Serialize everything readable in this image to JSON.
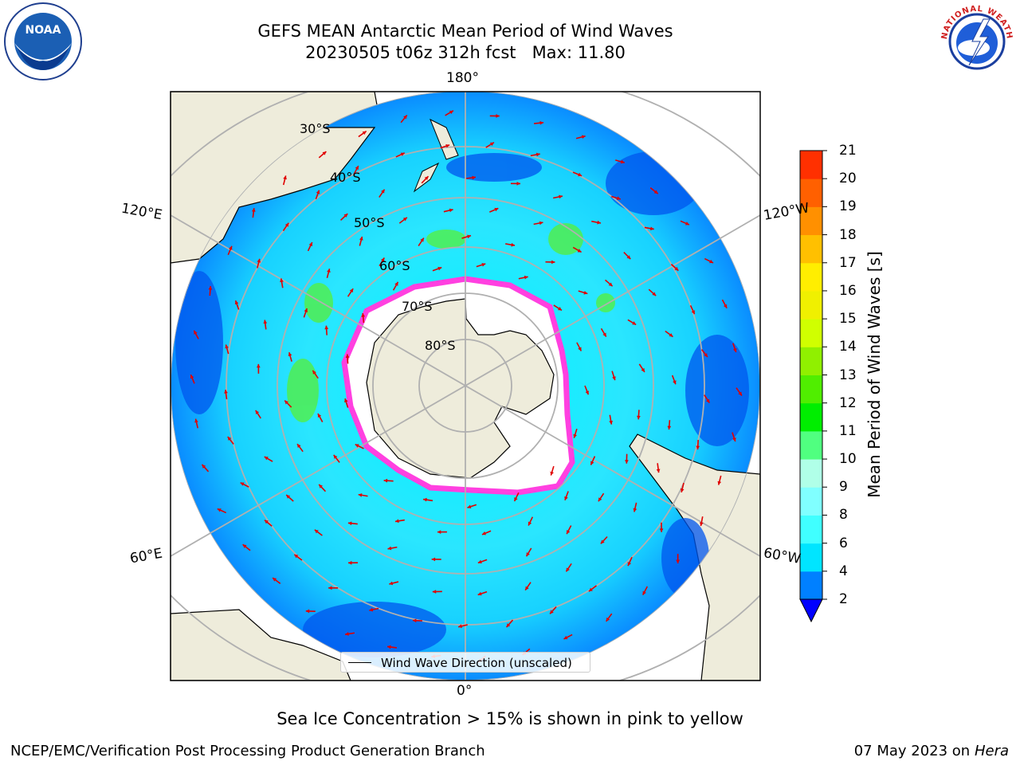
{
  "title": {
    "line1": "GEFS MEAN Antarctic Mean Period of Wind Waves",
    "line2": "20230505 t06z 312h fcst   Max: 11.80"
  },
  "logos": {
    "noaa": "NOAA",
    "nws": "NATIONAL WEATHER SERVICE"
  },
  "map": {
    "projection": "south-polar-stereographic",
    "lon_labels": {
      "top": "180°",
      "bottom": "0°",
      "upper_left": "120°E",
      "upper_right": "120°W",
      "lower_left": "60°E",
      "lower_right": "60°W"
    },
    "lat_labels": [
      "30°S",
      "40°S",
      "50°S",
      "60°S",
      "70°S",
      "80°S"
    ],
    "colors": {
      "ocean_main": "#00f5ff",
      "land": "#eeecdb",
      "ice_edge": "#ff40e0",
      "vector": "#e00000"
    }
  },
  "legend": {
    "label": "Wind Wave Direction (unscaled)"
  },
  "colorbar": {
    "title": "Mean Period of Wind Waves [s]",
    "ticks": [
      "21",
      "20",
      "19",
      "18",
      "17",
      "16",
      "15",
      "14",
      "13",
      "12",
      "11",
      "10",
      "9",
      "8",
      "6",
      "4",
      "2"
    ],
    "levels": [
      2,
      4,
      6,
      8,
      9,
      10,
      11,
      12,
      13,
      14,
      15,
      16,
      17,
      18,
      19,
      20,
      21
    ],
    "colors": [
      "#0080ff",
      "#00e5ff",
      "#40ffff",
      "#80ffff",
      "#b0ffe8",
      "#50ff80",
      "#00ee00",
      "#50ee00",
      "#90f000",
      "#d0ff00",
      "#f0f000",
      "#ffee00",
      "#ffc000",
      "#ff9000",
      "#ff6000",
      "#ff3000",
      "#ff0000"
    ],
    "under_color": "#0000ff"
  },
  "footer": {
    "note": "Sea Ice Concentration > 15% is shown in pink to yellow",
    "left": "NCEP/EMC/Verification Post Processing Product Generation Branch",
    "right_date": "07 May 2023 on",
    "right_host": "Hera"
  }
}
